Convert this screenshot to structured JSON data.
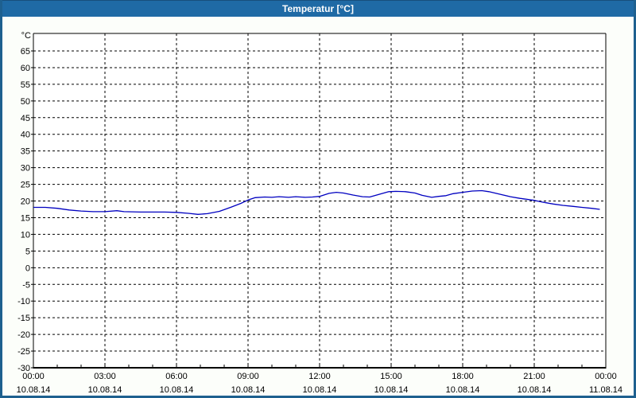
{
  "window": {
    "title": "Temperatur [°C]"
  },
  "colors": {
    "titlebar_bg": "#1f6aa5",
    "window_border": "#1e608f",
    "title_text": "#ffffff",
    "content_bg": "#fcfefa",
    "plot_bg": "#ffffff",
    "grid_color": "#000000",
    "axis_color": "#000000",
    "line_color": "#0000c0"
  },
  "chart_data": {
    "type": "line",
    "title": "Temperatur [°C]",
    "ylabel": "°C",
    "ylim": [
      -30,
      70
    ],
    "xlim_hours": [
      0,
      24
    ],
    "grid": "dashed",
    "legend": "none",
    "y_ticks": [
      65,
      60,
      55,
      50,
      45,
      40,
      35,
      30,
      25,
      20,
      15,
      10,
      5,
      0,
      -5,
      -10,
      -15,
      -20,
      -25,
      -30
    ],
    "x_ticks": [
      {
        "hour": 0,
        "time": "00:00",
        "date": "10.08.14"
      },
      {
        "hour": 3,
        "time": "03:00",
        "date": "10.08.14"
      },
      {
        "hour": 6,
        "time": "06:00",
        "date": "10.08.14"
      },
      {
        "hour": 9,
        "time": "09:00",
        "date": "10.08.14"
      },
      {
        "hour": 12,
        "time": "12:00",
        "date": "10.08.14"
      },
      {
        "hour": 15,
        "time": "15:00",
        "date": "10.08.14"
      },
      {
        "hour": 18,
        "time": "18:00",
        "date": "10.08.14"
      },
      {
        "hour": 21,
        "time": "21:00",
        "date": "10.08.14"
      },
      {
        "hour": 24,
        "time": "00:00",
        "date": "11.08.14"
      }
    ],
    "series": [
      {
        "name": "Temperatur",
        "color": "#0000c0",
        "points": [
          [
            0,
            18.1
          ],
          [
            0.5,
            18.1
          ],
          [
            1,
            17.8
          ],
          [
            1.5,
            17.3
          ],
          [
            2,
            17.0
          ],
          [
            2.5,
            16.8
          ],
          [
            3,
            16.8
          ],
          [
            3.5,
            17.1
          ],
          [
            3.8,
            16.8
          ],
          [
            4.5,
            16.7
          ],
          [
            5,
            16.7
          ],
          [
            5.5,
            16.7
          ],
          [
            6,
            16.6
          ],
          [
            6.5,
            16.3
          ],
          [
            6.9,
            16.0
          ],
          [
            7.3,
            16.2
          ],
          [
            7.8,
            16.9
          ],
          [
            8.3,
            18.2
          ],
          [
            8.7,
            19.3
          ],
          [
            9,
            20.3
          ],
          [
            9.3,
            21.0
          ],
          [
            9.7,
            21.2
          ],
          [
            10,
            21.1
          ],
          [
            10.3,
            21.3
          ],
          [
            10.7,
            21.1
          ],
          [
            11,
            21.3
          ],
          [
            11.4,
            21.1
          ],
          [
            11.7,
            21.2
          ],
          [
            12,
            21.4
          ],
          [
            12.4,
            22.3
          ],
          [
            12.7,
            22.6
          ],
          [
            13,
            22.4
          ],
          [
            13.4,
            21.8
          ],
          [
            13.8,
            21.3
          ],
          [
            14.1,
            21.2
          ],
          [
            14.5,
            22.0
          ],
          [
            14.9,
            22.8
          ],
          [
            15.2,
            22.9
          ],
          [
            15.6,
            22.8
          ],
          [
            16,
            22.4
          ],
          [
            16.3,
            21.7
          ],
          [
            16.7,
            21.1
          ],
          [
            17,
            21.4
          ],
          [
            17.3,
            21.6
          ],
          [
            17.6,
            22.2
          ],
          [
            18,
            22.6
          ],
          [
            18.4,
            23.0
          ],
          [
            18.8,
            23.1
          ],
          [
            19.1,
            22.8
          ],
          [
            19.4,
            22.3
          ],
          [
            19.7,
            21.8
          ],
          [
            20,
            21.3
          ],
          [
            20.4,
            20.8
          ],
          [
            21,
            20.2
          ],
          [
            21.4,
            19.6
          ],
          [
            21.8,
            19.1
          ],
          [
            22.2,
            18.7
          ],
          [
            22.6,
            18.4
          ],
          [
            23,
            18.1
          ],
          [
            23.4,
            17.8
          ],
          [
            23.75,
            17.5
          ]
        ]
      }
    ]
  }
}
